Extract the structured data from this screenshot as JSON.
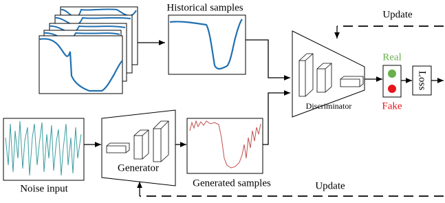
{
  "labels": {
    "historical": "Historical samples",
    "update_top": "Update",
    "real": "Real",
    "fake": "Fake",
    "loss": "Loss",
    "discriminator": "Discriminator",
    "noise": "Noise input",
    "generator": "Generator",
    "generated": "Generated samples",
    "update_bottom": "Update"
  }
}
